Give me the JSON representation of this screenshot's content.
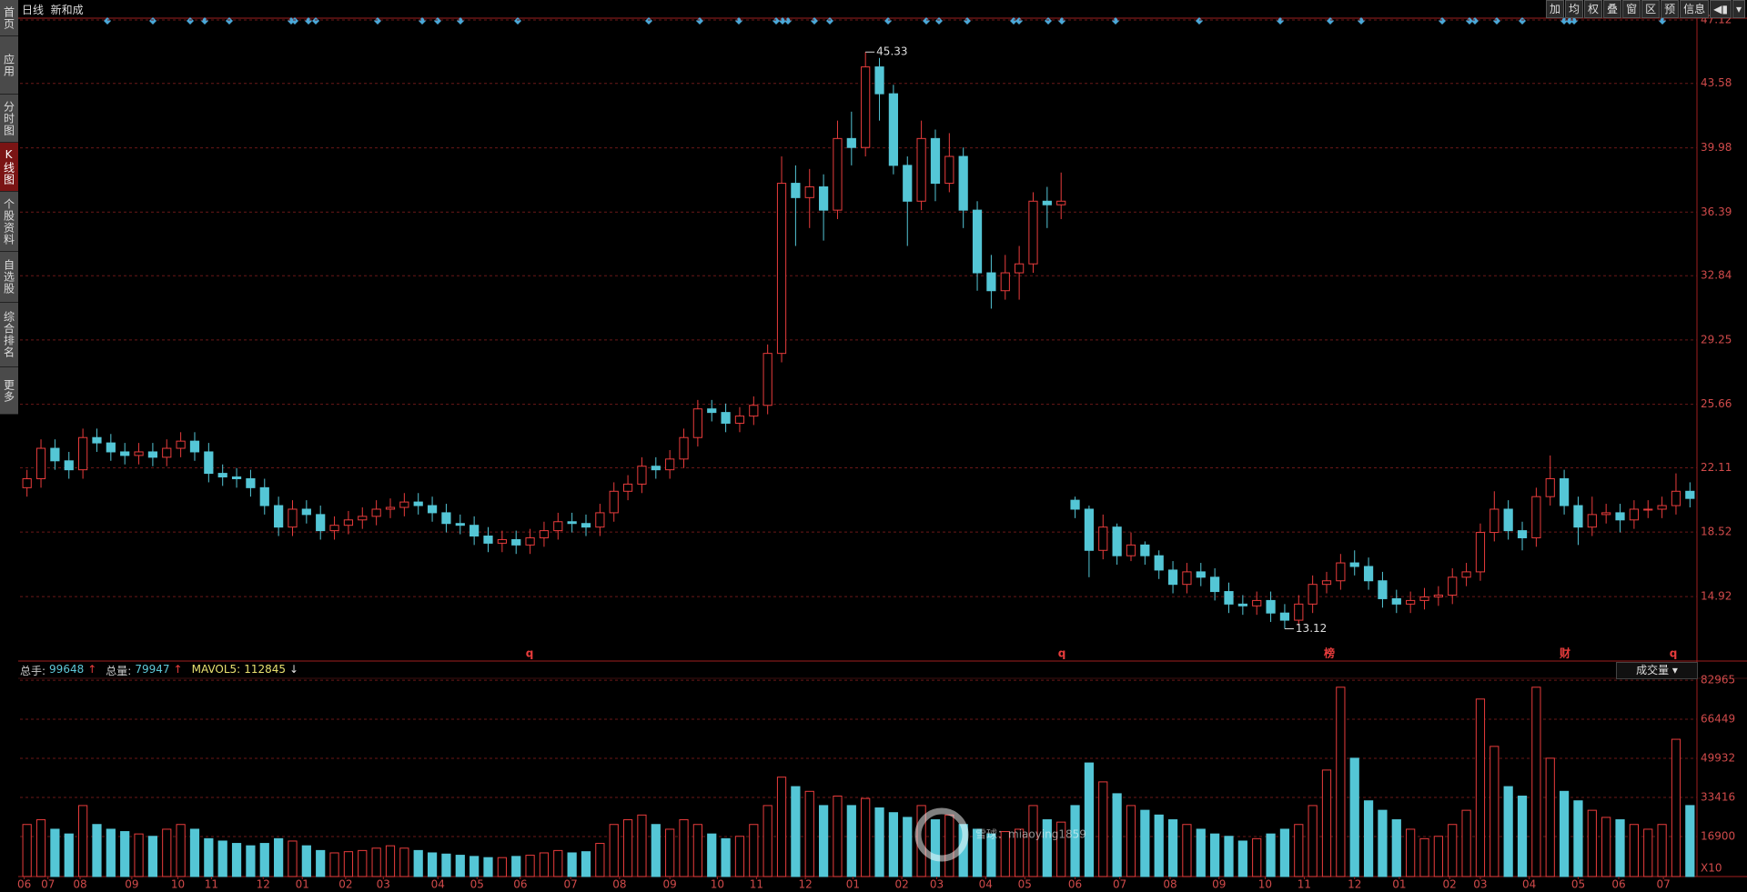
{
  "header": {
    "title": "日线  新和成",
    "tools": [
      "加",
      "均",
      "权",
      "叠",
      "窗",
      "区",
      "预",
      "信息"
    ]
  },
  "sidebar": [
    "首页",
    "应用",
    "分时图",
    "K线图",
    "个股资料",
    "自选股",
    "综合排名",
    "更多"
  ],
  "watermark": "雪球：miaoying1859",
  "chart_data": [
    {
      "type": "candlestick",
      "up_color": "#e83c3c",
      "down_color": "#54c6d6",
      "grid": true,
      "xlim": [
        -0.5,
        119.5
      ],
      "ylim": [
        11.42,
        47.17
      ],
      "yticks": [
        14.92,
        18.52,
        22.11,
        25.66,
        29.25,
        32.84,
        36.39,
        39.98,
        43.58,
        47.12
      ],
      "markers": [
        "q",
        "q",
        "榜",
        "财",
        "q"
      ],
      "open": [
        21.0,
        21.5,
        23.2,
        22.5,
        22.0,
        23.8,
        23.5,
        23.0,
        22.8,
        23.0,
        22.7,
        23.2,
        23.6,
        23.0,
        21.8,
        21.6,
        21.5,
        21.0,
        20.0,
        18.8,
        19.8,
        19.5,
        18.6,
        18.9,
        19.2,
        19.4,
        19.8,
        19.9,
        20.2,
        20.0,
        19.6,
        19.0,
        18.9,
        18.3,
        17.9,
        18.1,
        17.8,
        18.2,
        18.6,
        19.1,
        19.0,
        18.8,
        19.6,
        20.8,
        21.2,
        22.2,
        22.0,
        22.6,
        23.8,
        25.4,
        25.2,
        24.6,
        25.0,
        25.6,
        28.5,
        38.0,
        37.2,
        37.8,
        36.5,
        40.5,
        40.0,
        44.5,
        43.0,
        39.0,
        37.0,
        40.5,
        38.0,
        39.5,
        36.5,
        33.0,
        32.0,
        33.0,
        33.5,
        37.0,
        36.8,
        20.3,
        19.8,
        17.5,
        18.8,
        17.2,
        17.8,
        17.2,
        16.4,
        15.6,
        16.3,
        16.0,
        15.2,
        14.5,
        14.4,
        14.7,
        14.0,
        13.6,
        14.5,
        15.6,
        15.8,
        16.8,
        16.6,
        15.8,
        14.8,
        14.5,
        14.7,
        14.9,
        15.0,
        16.0,
        16.3,
        18.5,
        19.8,
        18.6,
        18.2,
        20.5,
        21.5,
        20.0,
        18.8,
        19.5,
        19.6,
        19.2,
        19.8,
        19.8,
        20.0,
        20.8
      ],
      "high": [
        22.0,
        23.7,
        23.7,
        23.0,
        24.3,
        24.3,
        24.0,
        23.5,
        23.5,
        23.5,
        23.7,
        24.1,
        24.1,
        23.5,
        22.3,
        22.1,
        22.0,
        21.5,
        20.5,
        20.3,
        20.3,
        20.0,
        19.4,
        19.7,
        19.9,
        20.3,
        20.4,
        20.7,
        20.7,
        20.5,
        20.1,
        19.5,
        19.4,
        18.8,
        18.6,
        18.6,
        18.7,
        19.1,
        19.6,
        19.6,
        19.5,
        20.1,
        21.3,
        21.7,
        22.7,
        22.7,
        23.1,
        24.3,
        25.9,
        25.9,
        25.7,
        25.5,
        26.1,
        29.0,
        39.5,
        39.0,
        38.8,
        38.5,
        41.5,
        42.0,
        45.33,
        45.0,
        43.5,
        39.5,
        41.5,
        41.0,
        40.8,
        40.0,
        37.0,
        34.0,
        34.0,
        34.5,
        37.5,
        37.8,
        38.6,
        20.5,
        20.0,
        19.5,
        19.0,
        18.5,
        18.0,
        17.5,
        16.9,
        16.8,
        16.8,
        16.5,
        15.7,
        15.0,
        15.2,
        15.2,
        14.5,
        15.0,
        16.1,
        16.3,
        17.3,
        17.5,
        17.1,
        16.3,
        15.3,
        15.2,
        15.4,
        15.5,
        16.5,
        16.8,
        19.0,
        20.8,
        20.3,
        19.1,
        21.0,
        22.8,
        22.0,
        20.5,
        20.5,
        20.1,
        20.1,
        20.3,
        20.3,
        20.5,
        21.8,
        21.3
      ],
      "low": [
        20.5,
        21.0,
        22.0,
        21.5,
        21.5,
        23.0,
        22.5,
        22.3,
        22.3,
        22.2,
        22.2,
        22.7,
        22.5,
        21.3,
        21.1,
        21.0,
        20.5,
        19.5,
        18.3,
        18.3,
        19.0,
        18.1,
        18.1,
        18.4,
        18.7,
        18.9,
        19.3,
        19.4,
        19.5,
        19.1,
        18.5,
        18.4,
        17.8,
        17.4,
        17.4,
        17.3,
        17.3,
        17.7,
        18.1,
        18.5,
        18.3,
        18.3,
        19.1,
        20.3,
        20.7,
        21.5,
        21.5,
        22.1,
        23.3,
        24.7,
        24.1,
        24.1,
        24.5,
        25.1,
        28.0,
        34.5,
        35.5,
        34.8,
        36.0,
        39.0,
        39.5,
        41.5,
        38.5,
        34.5,
        36.5,
        37.0,
        37.5,
        35.5,
        32.0,
        31.0,
        31.5,
        31.5,
        33.0,
        35.5,
        36.0,
        19.3,
        16.0,
        17.0,
        16.7,
        16.9,
        16.7,
        15.9,
        15.1,
        15.1,
        15.5,
        14.7,
        14.0,
        13.9,
        13.9,
        13.5,
        13.12,
        13.3,
        14.0,
        15.1,
        15.3,
        16.1,
        15.3,
        14.3,
        14.0,
        14.0,
        14.2,
        14.4,
        14.5,
        15.5,
        15.8,
        18.0,
        18.1,
        17.5,
        17.7,
        20.0,
        19.5,
        17.8,
        18.3,
        19.0,
        18.5,
        18.7,
        19.3,
        19.3,
        19.5,
        19.9
      ],
      "close": [
        21.5,
        23.2,
        22.5,
        22.0,
        23.8,
        23.5,
        23.0,
        22.8,
        23.0,
        22.7,
        23.2,
        23.6,
        23.0,
        21.8,
        21.6,
        21.5,
        21.0,
        20.0,
        18.8,
        19.8,
        19.5,
        18.6,
        18.9,
        19.2,
        19.4,
        19.8,
        19.9,
        20.2,
        20.0,
        19.6,
        19.0,
        18.9,
        18.3,
        17.9,
        18.1,
        17.8,
        18.2,
        18.6,
        19.1,
        19.0,
        18.8,
        19.6,
        20.8,
        21.2,
        22.2,
        22.0,
        22.6,
        23.8,
        25.4,
        25.2,
        24.6,
        25.0,
        25.6,
        28.5,
        38.0,
        37.2,
        37.8,
        36.5,
        40.5,
        40.0,
        44.5,
        43.0,
        39.0,
        37.0,
        40.5,
        38.0,
        39.5,
        36.5,
        33.0,
        32.0,
        33.0,
        33.5,
        37.0,
        36.8,
        37.0,
        19.8,
        17.5,
        18.8,
        17.2,
        17.8,
        17.2,
        16.4,
        15.6,
        16.3,
        16.0,
        15.2,
        14.5,
        14.4,
        14.7,
        14.0,
        13.6,
        14.5,
        15.6,
        15.8,
        16.8,
        16.6,
        15.8,
        14.8,
        14.5,
        14.7,
        14.9,
        15.0,
        16.0,
        16.3,
        18.5,
        19.8,
        18.6,
        18.2,
        20.5,
        21.5,
        20.0,
        18.8,
        19.5,
        19.6,
        19.2,
        19.8,
        19.8,
        20.0,
        20.8,
        20.4
      ]
    },
    {
      "type": "bar",
      "title": "成交量",
      "unit_label": "X10",
      "grid": true,
      "header": [
        {
          "label": "总手:",
          "value": 99648,
          "arrow": "↑"
        },
        {
          "label": "总量:",
          "value": 79947,
          "arrow": "↑"
        },
        {
          "label": "MAVOL5:",
          "value": 112845,
          "arrow": "↓"
        }
      ],
      "xlim": [
        -0.5,
        119.5
      ],
      "ylim": [
        0,
        85300
      ],
      "yticks": [
        16900,
        33416,
        49932,
        66449,
        82965
      ],
      "xticks": [
        {
          "value": -0.2,
          "label": "06"
        },
        {
          "value": 1.5,
          "label": "07"
        },
        {
          "value": 3.8,
          "label": "08"
        },
        {
          "value": 7.5,
          "label": "09"
        },
        {
          "value": 10.8,
          "label": "10"
        },
        {
          "value": 13.2,
          "label": "11"
        },
        {
          "value": 16.9,
          "label": "12"
        },
        {
          "value": 19.7,
          "label": "01"
        },
        {
          "value": 22.8,
          "label": "02"
        },
        {
          "value": 25.5,
          "label": "03"
        },
        {
          "value": 29.4,
          "label": "04"
        },
        {
          "value": 32.2,
          "label": "05"
        },
        {
          "value": 35.3,
          "label": "06"
        },
        {
          "value": 38.9,
          "label": "07"
        },
        {
          "value": 42.4,
          "label": "08"
        },
        {
          "value": 46.0,
          "label": "09"
        },
        {
          "value": 49.4,
          "label": "10"
        },
        {
          "value": 52.2,
          "label": "11"
        },
        {
          "value": 55.7,
          "label": "12"
        },
        {
          "value": 59.1,
          "label": "01"
        },
        {
          "value": 62.6,
          "label": "02"
        },
        {
          "value": 65.1,
          "label": "03"
        },
        {
          "value": 68.6,
          "label": "04"
        },
        {
          "value": 71.4,
          "label": "05"
        },
        {
          "value": 75.0,
          "label": "06"
        },
        {
          "value": 78.2,
          "label": "07"
        },
        {
          "value": 81.8,
          "label": "08"
        },
        {
          "value": 85.3,
          "label": "09"
        },
        {
          "value": 88.6,
          "label": "10"
        },
        {
          "value": 91.4,
          "label": "11"
        },
        {
          "value": 95.0,
          "label": "12"
        },
        {
          "value": 98.2,
          "label": "01"
        },
        {
          "value": 101.8,
          "label": "02"
        },
        {
          "value": 104.0,
          "label": "03"
        },
        {
          "value": 107.5,
          "label": "04"
        },
        {
          "value": 111.0,
          "label": "05"
        },
        {
          "value": 113.9,
          "label": "06"
        },
        {
          "value": 117.1,
          "label": "07"
        }
      ],
      "values": [
        22000,
        24000,
        20000,
        18000,
        30000,
        22000,
        20000,
        19000,
        18000,
        17000,
        20000,
        22000,
        20000,
        16000,
        15000,
        14000,
        13000,
        14000,
        16000,
        15000,
        13000,
        11000,
        10000,
        10500,
        11000,
        12000,
        13000,
        12000,
        11000,
        10000,
        9500,
        9000,
        8500,
        8000,
        8000,
        8500,
        9000,
        10000,
        11000,
        10000,
        10500,
        14000,
        22000,
        24000,
        26000,
        22000,
        20000,
        24000,
        22000,
        18000,
        16000,
        17000,
        22000,
        30000,
        42000,
        38000,
        36000,
        30000,
        34000,
        30000,
        33000,
        29000,
        27000,
        25000,
        30000,
        24000,
        26000,
        22000,
        20000,
        18000,
        19000,
        20000,
        30000,
        24000,
        23000,
        30000,
        48000,
        40000,
        35000,
        30000,
        28000,
        26000,
        24000,
        22000,
        20000,
        18000,
        17000,
        15000,
        16000,
        18000,
        20000,
        22000,
        30000,
        45000,
        80000,
        50000,
        32000,
        28000,
        24000,
        20000,
        16000,
        17000,
        22000,
        28000,
        75000,
        55000,
        38000,
        34000,
        80000,
        50000,
        36000,
        32000,
        28000,
        25000,
        24000,
        22000,
        20000,
        22000,
        58000,
        30000
      ]
    }
  ]
}
